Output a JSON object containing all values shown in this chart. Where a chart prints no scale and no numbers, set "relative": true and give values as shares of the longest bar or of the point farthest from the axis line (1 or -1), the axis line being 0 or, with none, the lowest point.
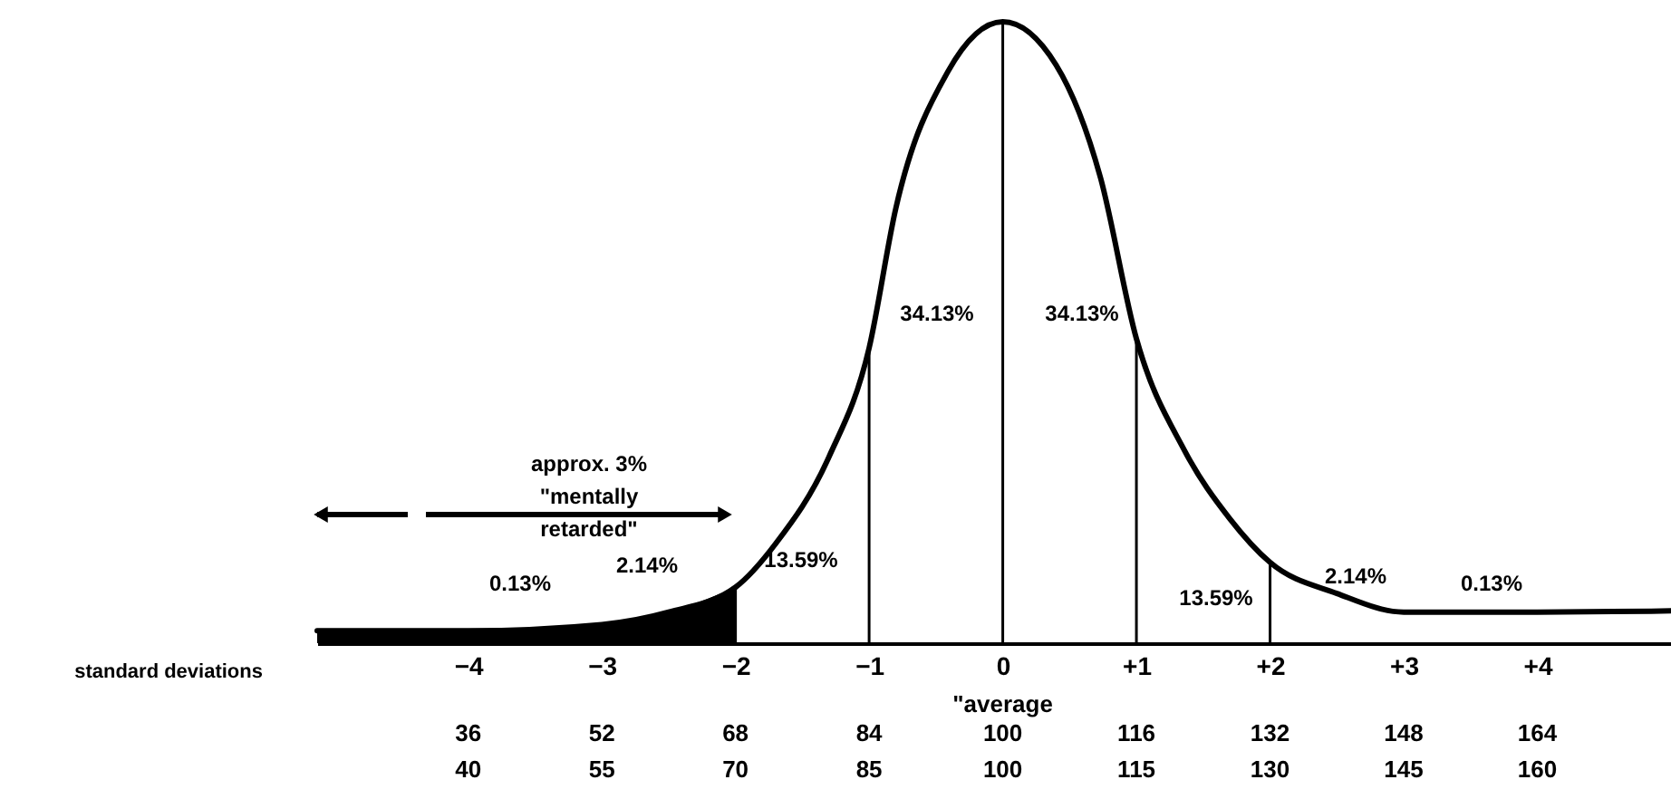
{
  "chart_data": {
    "type": "line",
    "relative": true,
    "xlabel": "standard deviations",
    "xlim": [
      -5.13,
      5.0
    ],
    "xticks": [
      {
        "value": -4,
        "label": "−4"
      },
      {
        "value": -3,
        "label": "−3"
      },
      {
        "value": -2,
        "label": "−2"
      },
      {
        "value": -1,
        "label": "−1"
      },
      0,
      {
        "value": 1,
        "label": "+1"
      },
      {
        "value": 2,
        "label": "+2"
      },
      {
        "value": 3,
        "label": "+3"
      },
      {
        "value": 4,
        "label": "+4"
      }
    ],
    "series": [
      {
        "color": "#000000",
        "x": [
          -5.13,
          -4,
          -3,
          -2.5,
          -2,
          -1.7,
          -1.3,
          -1,
          -0.8,
          -0.41,
          0,
          0.4,
          0.73,
          1,
          1.36,
          1.7,
          2,
          2.5,
          3,
          4,
          5.0
        ],
        "values": [
          0.02,
          0.02,
          0.03,
          0.05,
          0.09,
          0.16,
          0.3,
          0.475,
          0.7,
          0.92,
          1,
          0.93,
          0.75,
          0.49,
          0.31,
          0.2,
          0.13,
          0.08,
          0.05,
          0.05,
          0.052
        ]
      },
      {
        "type": "area",
        "color": "#000000",
        "x": [
          -5.13,
          -4,
          -3,
          -2.5,
          -2
        ],
        "values": [
          0.02,
          0.02,
          0.03,
          0.05,
          0.09
        ]
      }
    ],
    "ref_lines": [
      {
        "axis": "x",
        "value": -2
      },
      {
        "axis": "x",
        "value": -1
      },
      {
        "axis": "x",
        "value": 0
      },
      {
        "axis": "x",
        "value": 1
      },
      {
        "axis": "x",
        "value": 2
      }
    ],
    "annotations": [
      "0.13%",
      "2.14%",
      "13.59%",
      "34.13%",
      "34.13%",
      "13.59%",
      "2.14%",
      "0.13%",
      "approx. 3%\n\"mentally\nretarded\"",
      "\"average",
      "36",
      "52",
      "68",
      "84",
      "100",
      "116",
      "132",
      "148",
      "164",
      "40",
      "55",
      "70",
      "85",
      "100",
      "115",
      "130",
      "145",
      "160"
    ]
  }
}
